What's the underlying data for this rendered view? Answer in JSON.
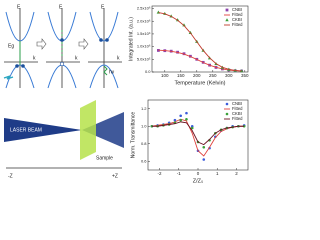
{
  "diagram": {
    "energy_labels": [
      "E",
      "E",
      "E"
    ],
    "k_labels": [
      "k",
      "k",
      "k"
    ],
    "gap_label": "Eg",
    "photon_label": "hν",
    "laser_label": "LASER BEAM",
    "sample_label": "Sample",
    "minus_z": "-Z",
    "plus_z": "+Z"
  },
  "chart_data": [
    {
      "type": "line",
      "x_label": "Temperature (Kelvin)",
      "y_label": "Integrated Int. (a.u.)",
      "xlim": [
        60,
        360
      ],
      "xticks": [
        100,
        150,
        200,
        250,
        300,
        350
      ],
      "ylim": [
        0,
        2600000
      ],
      "yticks": [
        {
          "value": 0,
          "label": "0.0"
        },
        {
          "value": 500000,
          "label": "5.0x10⁵"
        },
        {
          "value": 1000000,
          "label": "1.0x10⁶"
        },
        {
          "value": 1500000,
          "label": "1.5x10⁶"
        },
        {
          "value": 2000000,
          "label": "2.0x10⁶"
        },
        {
          "value": 2500000,
          "label": "2.5x10⁶"
        }
      ],
      "legend": "upper right",
      "x": [
        80,
        100,
        120,
        140,
        160,
        180,
        200,
        220,
        240,
        260,
        280,
        300,
        320,
        340
      ],
      "series": [
        {
          "name": "CNBI",
          "color": "#8e44ad",
          "style": "marker",
          "marker": "square",
          "values": [
            850000,
            840000,
            820000,
            780000,
            720000,
            620000,
            500000,
            380000,
            270000,
            180000,
            120000,
            80000,
            50000,
            40000
          ]
        },
        {
          "name": "Fitted",
          "color": "#e0403c",
          "style": "line",
          "values": [
            860000,
            845000,
            815000,
            770000,
            705000,
            610000,
            495000,
            375000,
            270000,
            185000,
            120000,
            78000,
            52000,
            38000
          ]
        },
        {
          "name": "CKBI",
          "color": "#3aa03a",
          "style": "marker",
          "marker": "triangle",
          "values": [
            2350000,
            2300000,
            2200000,
            2050000,
            1850000,
            1550000,
            1200000,
            850000,
            550000,
            320000,
            180000,
            100000,
            60000,
            40000
          ]
        },
        {
          "name": "Fitted",
          "color": "#c0392b",
          "style": "line",
          "values": [
            2340000,
            2290000,
            2190000,
            2040000,
            1830000,
            1540000,
            1190000,
            850000,
            560000,
            330000,
            185000,
            105000,
            62000,
            40000
          ]
        }
      ]
    },
    {
      "type": "line",
      "x_label": "Z/Z₀",
      "y_label": "Norm. Transmittance",
      "xlim": [
        -2.6,
        2.6
      ],
      "xticks": [
        -2,
        -1,
        0,
        1,
        2
      ],
      "ylim": [
        0.5,
        1.3
      ],
      "yticks": [
        0.6,
        0.8,
        {
          "value": 1,
          "label": "1.0"
        },
        1.2
      ],
      "legend": "upper right",
      "x": [
        -2.4,
        -2.1,
        -1.8,
        -1.5,
        -1.2,
        -0.9,
        -0.6,
        -0.3,
        0,
        0.3,
        0.6,
        0.9,
        1.2,
        1.5,
        1.8,
        2.1,
        2.4
      ],
      "series": [
        {
          "name": "CNBI",
          "color": "#3b5bdb",
          "style": "marker",
          "marker": "circle",
          "values": [
            1,
            1.01,
            1.02,
            1.04,
            1.07,
            1.12,
            1.15,
            1,
            0.72,
            0.62,
            0.75,
            0.88,
            0.95,
            0.98,
            1,
            1,
            1.01
          ]
        },
        {
          "name": "Fitted",
          "color": "#e0403c",
          "style": "line",
          "values": [
            1,
            1.01,
            1.02,
            1.03,
            1.05,
            1.08,
            1.06,
            0.92,
            0.72,
            0.66,
            0.76,
            0.87,
            0.94,
            0.97,
            0.99,
            1,
            1
          ]
        },
        {
          "name": "CKBI",
          "color": "#3aa03a",
          "style": "marker",
          "marker": "circle",
          "values": [
            1,
            1,
            1.01,
            1.02,
            1.04,
            1.07,
            1.08,
            0.98,
            0.82,
            0.76,
            0.84,
            0.92,
            0.96,
            0.98,
            0.99,
            1,
            1
          ]
        },
        {
          "name": "Fitted",
          "color": "#6b1020",
          "style": "line",
          "values": [
            1,
            1,
            1.01,
            1.02,
            1.03,
            1.05,
            1.04,
            0.95,
            0.82,
            0.79,
            0.85,
            0.92,
            0.96,
            0.98,
            0.99,
            1,
            1
          ]
        }
      ]
    }
  ]
}
